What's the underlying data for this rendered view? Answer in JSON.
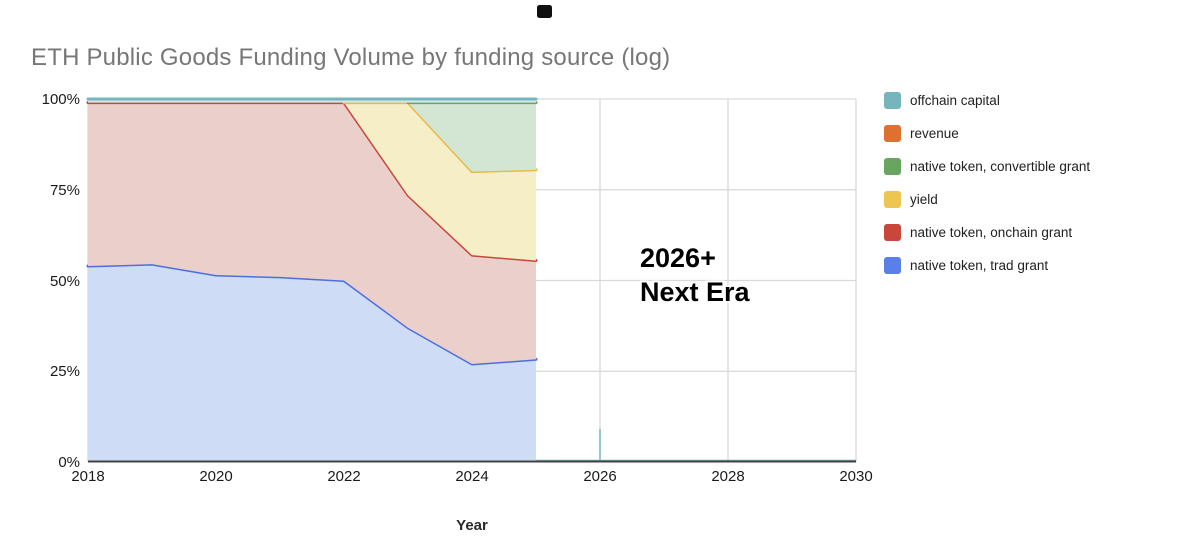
{
  "page": {
    "title": "ETH Public Goods Funding Volume by funding source (log)"
  },
  "annotation": {
    "line1": "2026+",
    "line2": "Next Era"
  },
  "x_axis": {
    "label": "Year",
    "ticks": [
      "2018",
      "2020",
      "2022",
      "2024",
      "2026",
      "2028",
      "2030"
    ]
  },
  "y_axis": {
    "ticks": [
      "100%",
      "75%",
      "50%",
      "25%",
      "0%"
    ]
  },
  "legend": {
    "items": [
      {
        "label": "offchain capital",
        "color": "#76b5bc"
      },
      {
        "label": "revenue",
        "color": "#dd7230"
      },
      {
        "label": "native token, convertible grant",
        "color": "#67a561"
      },
      {
        "label": "yield",
        "color": "#ecc64f"
      },
      {
        "label": "native token, onchain grant",
        "color": "#c8473a"
      },
      {
        "label": "native token, trad grant",
        "color": "#5b7fe9"
      }
    ]
  },
  "chart_data": {
    "type": "area",
    "stacked": true,
    "normalized_percent": true,
    "title": "ETH Public Goods Funding Volume by funding source (log)",
    "xlabel": "Year",
    "ylabel": "",
    "xlim": [
      2018,
      2030
    ],
    "ylim": [
      0,
      100
    ],
    "grid": true,
    "legend_position": "right",
    "x": [
      2018,
      2019,
      2020,
      2021,
      2022,
      2023,
      2024,
      2025
    ],
    "series_order": "bottom_to_top",
    "series": [
      {
        "name": "native token, trad grant",
        "line_color": "#4c6fdc",
        "fill_color": "#cedcf5",
        "values": [
          54,
          54.5,
          51.5,
          51,
          50,
          37,
          27,
          28.3
        ]
      },
      {
        "name": "native token, onchain grant",
        "line_color": "#c8473a",
        "fill_color": "#ebcfca",
        "values": [
          45,
          44.5,
          47.5,
          48,
          49,
          36.5,
          30,
          27.2
        ]
      },
      {
        "name": "yield",
        "line_color": "#e9b949",
        "fill_color": "#f6eec6",
        "values": [
          0,
          0,
          0,
          0,
          0,
          25.5,
          23,
          25
        ]
      },
      {
        "name": "native token, convertible grant",
        "line_color": "#67a561",
        "fill_color": "#d3e5d3",
        "values": [
          0,
          0,
          0,
          0,
          0,
          0,
          19,
          18.5
        ]
      },
      {
        "name": "revenue",
        "line_color": "#dd7230",
        "fill_color": "#f5d8c2",
        "values": [
          0,
          0,
          0,
          0,
          0,
          0,
          0,
          0
        ]
      },
      {
        "name": "offchain capital",
        "line_color": "#76b5bc",
        "fill_color": "#d2e8ea",
        "values": [
          1,
          1,
          1,
          1,
          1,
          1,
          1,
          1
        ]
      }
    ],
    "annotation_text": "2026+ Next Era",
    "future_region_start": 2025,
    "axis_color": "#424242",
    "gridline_color": "#d9d9d9"
  }
}
